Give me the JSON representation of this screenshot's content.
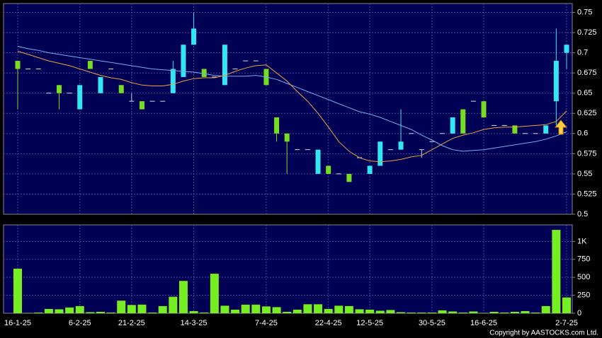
{
  "chart_data": [
    {
      "type": "candlestick",
      "up_color": "#33e6f2",
      "down_color": "#77dd22",
      "grid": true,
      "categories": [
        "16-1-25",
        null,
        null,
        null,
        null,
        null,
        "6-2-25",
        null,
        null,
        null,
        null,
        "21-2-25",
        null,
        null,
        null,
        null,
        null,
        "14-3-25",
        null,
        null,
        null,
        null,
        null,
        null,
        "7-4-25",
        null,
        null,
        null,
        null,
        null,
        "22-4-25",
        null,
        null,
        null,
        "12-5-25",
        null,
        null,
        null,
        null,
        null,
        "30-5-25",
        null,
        null,
        null,
        null,
        "16-6-25",
        null,
        null,
        null,
        null,
        null,
        null,
        null,
        "2-7-25"
      ],
      "open": [
        0.69,
        0.68,
        0.68,
        0.65,
        0.66,
        0.65,
        0.63,
        0.69,
        0.65,
        0.68,
        0.66,
        0.64,
        0.64,
        0.64,
        0.64,
        0.65,
        0.67,
        0.71,
        0.68,
        0.67,
        0.66,
        0.68,
        0.69,
        0.69,
        0.68,
        0.62,
        0.6,
        0.58,
        0.58,
        0.55,
        0.56,
        0.55,
        0.55,
        0.57,
        0.55,
        0.56,
        0.58,
        0.58,
        0.6,
        0.58,
        0.59,
        0.6,
        0.6,
        0.63,
        0.64,
        0.64,
        0.61,
        0.61,
        0.61,
        0.6,
        0.6,
        0.6,
        0.64,
        0.7
      ],
      "high": [
        0.69,
        0.68,
        0.68,
        0.65,
        0.66,
        0.65,
        0.66,
        0.69,
        0.67,
        0.68,
        0.66,
        0.65,
        0.64,
        0.64,
        0.64,
        0.69,
        0.71,
        0.75,
        0.68,
        0.67,
        0.71,
        0.68,
        0.69,
        0.69,
        0.68,
        0.62,
        0.6,
        0.58,
        0.58,
        0.58,
        0.56,
        0.55,
        0.55,
        0.57,
        0.56,
        0.59,
        0.58,
        0.63,
        0.6,
        0.58,
        0.59,
        0.6,
        0.62,
        0.63,
        0.64,
        0.64,
        0.61,
        0.61,
        0.61,
        0.6,
        0.6,
        0.61,
        0.73,
        0.71
      ],
      "low": [
        0.63,
        0.68,
        0.68,
        0.65,
        0.63,
        0.65,
        0.63,
        0.68,
        0.65,
        0.68,
        0.65,
        0.64,
        0.63,
        0.64,
        0.64,
        0.65,
        0.67,
        0.71,
        0.67,
        0.67,
        0.66,
        0.68,
        0.69,
        0.69,
        0.66,
        0.59,
        0.55,
        0.58,
        0.58,
        0.55,
        0.55,
        0.55,
        0.54,
        0.57,
        0.55,
        0.56,
        0.58,
        0.58,
        0.6,
        0.57,
        0.59,
        0.6,
        0.6,
        0.6,
        0.64,
        0.62,
        0.61,
        0.61,
        0.6,
        0.6,
        0.6,
        0.6,
        0.61,
        0.68
      ],
      "close": [
        0.68,
        0.68,
        0.68,
        0.65,
        0.65,
        0.65,
        0.66,
        0.68,
        0.67,
        0.68,
        0.65,
        0.64,
        0.63,
        0.64,
        0.64,
        0.68,
        0.71,
        0.73,
        0.67,
        0.67,
        0.71,
        0.68,
        0.69,
        0.69,
        0.66,
        0.6,
        0.59,
        0.58,
        0.58,
        0.58,
        0.55,
        0.55,
        0.54,
        0.57,
        0.56,
        0.59,
        0.58,
        0.59,
        0.6,
        0.58,
        0.59,
        0.6,
        0.62,
        0.6,
        0.64,
        0.62,
        0.61,
        0.61,
        0.6,
        0.6,
        0.6,
        0.61,
        0.69,
        0.71
      ],
      "series": [
        {
          "color": "#6fb0ea",
          "values": [
            0.708,
            0.705,
            0.703,
            0.7,
            0.698,
            0.696,
            0.694,
            0.692,
            0.69,
            0.688,
            0.686,
            0.684,
            0.682,
            0.68,
            0.679,
            0.678,
            0.677,
            0.676,
            0.674,
            0.672,
            0.671,
            0.671,
            0.671,
            0.672,
            0.67,
            0.667,
            0.662,
            0.657,
            0.652,
            0.647,
            0.642,
            0.637,
            0.632,
            0.627,
            0.624,
            0.62,
            0.615,
            0.61,
            0.605,
            0.598,
            0.592,
            0.585,
            0.58,
            0.578,
            0.579,
            0.58,
            0.582,
            0.584,
            0.586,
            0.588,
            0.59,
            0.593,
            0.597,
            0.602
          ]
        },
        {
          "color": "#f0a040",
          "values": [
            0.702,
            0.698,
            0.694,
            0.69,
            0.687,
            0.684,
            0.68,
            0.676,
            0.672,
            0.669,
            0.667,
            0.663,
            0.66,
            0.659,
            0.659,
            0.661,
            0.665,
            0.668,
            0.669,
            0.669,
            0.672,
            0.677,
            0.681,
            0.684,
            0.685,
            0.675,
            0.665,
            0.652,
            0.64,
            0.625,
            0.608,
            0.59,
            0.578,
            0.57,
            0.566,
            0.565,
            0.566,
            0.568,
            0.571,
            0.573,
            0.58,
            0.587,
            0.594,
            0.598,
            0.601,
            0.605,
            0.607,
            0.608,
            0.608,
            0.609,
            0.61,
            0.611,
            0.615,
            0.628
          ]
        }
      ],
      "ylim": [
        0.5,
        0.761
      ],
      "yticks": [
        0.5,
        0.525,
        0.55,
        0.575,
        0.6,
        0.625,
        0.65,
        0.675,
        0.7,
        0.725,
        0.75
      ]
    },
    {
      "type": "bar",
      "color": "#77ee22",
      "grid": true,
      "values": [
        620,
        5,
        10,
        60,
        55,
        80,
        100,
        15,
        20,
        10,
        175,
        115,
        120,
        10,
        100,
        230,
        450,
        30,
        10,
        550,
        105,
        50,
        120,
        120,
        95,
        85,
        20,
        50,
        125,
        125,
        60,
        105,
        100,
        55,
        50,
        35,
        45,
        15,
        10,
        10,
        10,
        40,
        25,
        10,
        25,
        5,
        20,
        10,
        20,
        30,
        10,
        100,
        1160,
        220
      ],
      "ylim": [
        0,
        1230
      ],
      "yticks": [
        0,
        250,
        500,
        750,
        {
          "value": 1000,
          "label": "1K"
        }
      ]
    }
  ],
  "footer": {
    "copyright": "Copyright by AASTOCKS.com Ltd."
  }
}
